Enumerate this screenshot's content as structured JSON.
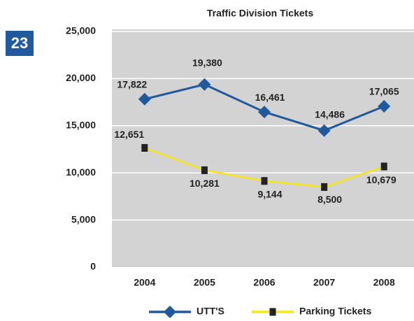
{
  "page_number": "23",
  "chart_data": {
    "type": "line",
    "title": "Traffic Division Tickets",
    "categories": [
      "2004",
      "2005",
      "2006",
      "2007",
      "2008"
    ],
    "series": [
      {
        "name": "UTT'S",
        "color": "#1f5a9e",
        "values": [
          17822,
          19380,
          16461,
          14486,
          17065
        ],
        "value_labels": [
          "17,822",
          "19,380",
          "16,461",
          "14,486",
          "17,065"
        ]
      },
      {
        "name": "Parking Tickets",
        "color": "#f5e614",
        "values": [
          12651,
          10281,
          9144,
          8500,
          10679
        ],
        "value_labels": [
          "12,651",
          "10,281",
          "9,144",
          "8,500",
          "10,679"
        ]
      }
    ],
    "ylim": [
      0,
      25000
    ],
    "yticks": [
      0,
      {
        "value": 5000,
        "label": "5,000"
      },
      {
        "value": 10000,
        "label": "10,000"
      },
      {
        "value": 15000,
        "label": "15,000"
      },
      {
        "value": 20000,
        "label": "20,000"
      },
      {
        "value": 25000,
        "label": "25,000"
      }
    ],
    "grid": true,
    "legend": "bottom"
  }
}
